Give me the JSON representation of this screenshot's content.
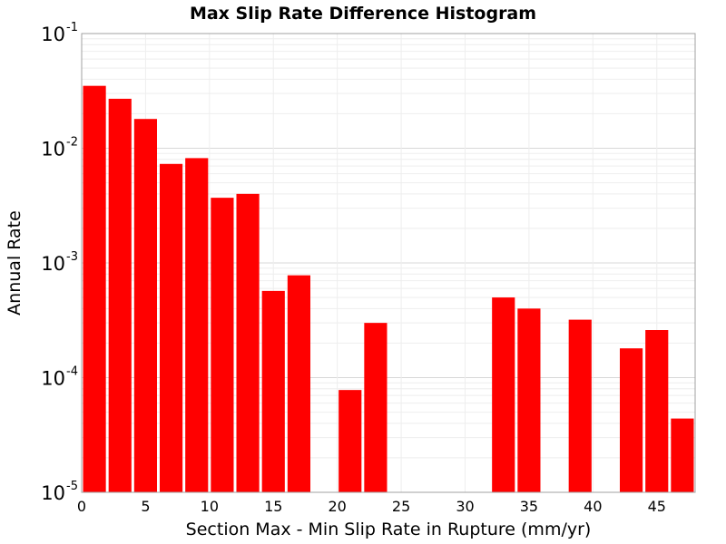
{
  "chart_data": {
    "type": "bar",
    "title": "Max Slip Rate Difference Histogram",
    "xlabel": "Section Max - Min Slip Rate in Rupture (mm/yr)",
    "ylabel": "Annual Rate",
    "xlim": [
      0,
      48
    ],
    "ylim": [
      1e-05,
      0.1
    ],
    "yscale": "log",
    "bin_width": 2,
    "grid": true,
    "bar_color": "#ff0000",
    "x_ticks": [
      0,
      5,
      10,
      15,
      20,
      25,
      30,
      35,
      40,
      45
    ],
    "x_tick_labels": [
      "0",
      "5",
      "10",
      "15",
      "20",
      "25",
      "30",
      "35",
      "40",
      "45"
    ],
    "y_ticks": [
      {
        "value": 1e-05,
        "base": "10",
        "exp": "-5"
      },
      {
        "value": 0.0001,
        "base": "10",
        "exp": "-4"
      },
      {
        "value": 0.001,
        "base": "10",
        "exp": "-3"
      },
      {
        "value": 0.01,
        "base": "10",
        "exp": "-2"
      },
      {
        "value": 0.1,
        "base": "10",
        "exp": "-1"
      }
    ],
    "bins": [
      {
        "x": 1,
        "value": 0.035
      },
      {
        "x": 3,
        "value": 0.027
      },
      {
        "x": 5,
        "value": 0.018
      },
      {
        "x": 7,
        "value": 0.0073
      },
      {
        "x": 9,
        "value": 0.0082
      },
      {
        "x": 11,
        "value": 0.0037
      },
      {
        "x": 13,
        "value": 0.004
      },
      {
        "x": 15,
        "value": 0.00057
      },
      {
        "x": 17,
        "value": 0.00078
      },
      {
        "x": 19,
        "value": 0
      },
      {
        "x": 21,
        "value": 7.8e-05
      },
      {
        "x": 23,
        "value": 0.0003
      },
      {
        "x": 25,
        "value": 0
      },
      {
        "x": 27,
        "value": 0
      },
      {
        "x": 29,
        "value": 0
      },
      {
        "x": 31,
        "value": 0
      },
      {
        "x": 33,
        "value": 0.0005
      },
      {
        "x": 35,
        "value": 0.0004
      },
      {
        "x": 37,
        "value": 0
      },
      {
        "x": 39,
        "value": 0.00032
      },
      {
        "x": 41,
        "value": 0
      },
      {
        "x": 43,
        "value": 0.00018
      },
      {
        "x": 45,
        "value": 0.00026
      },
      {
        "x": 47,
        "value": 4.4e-05
      }
    ]
  }
}
